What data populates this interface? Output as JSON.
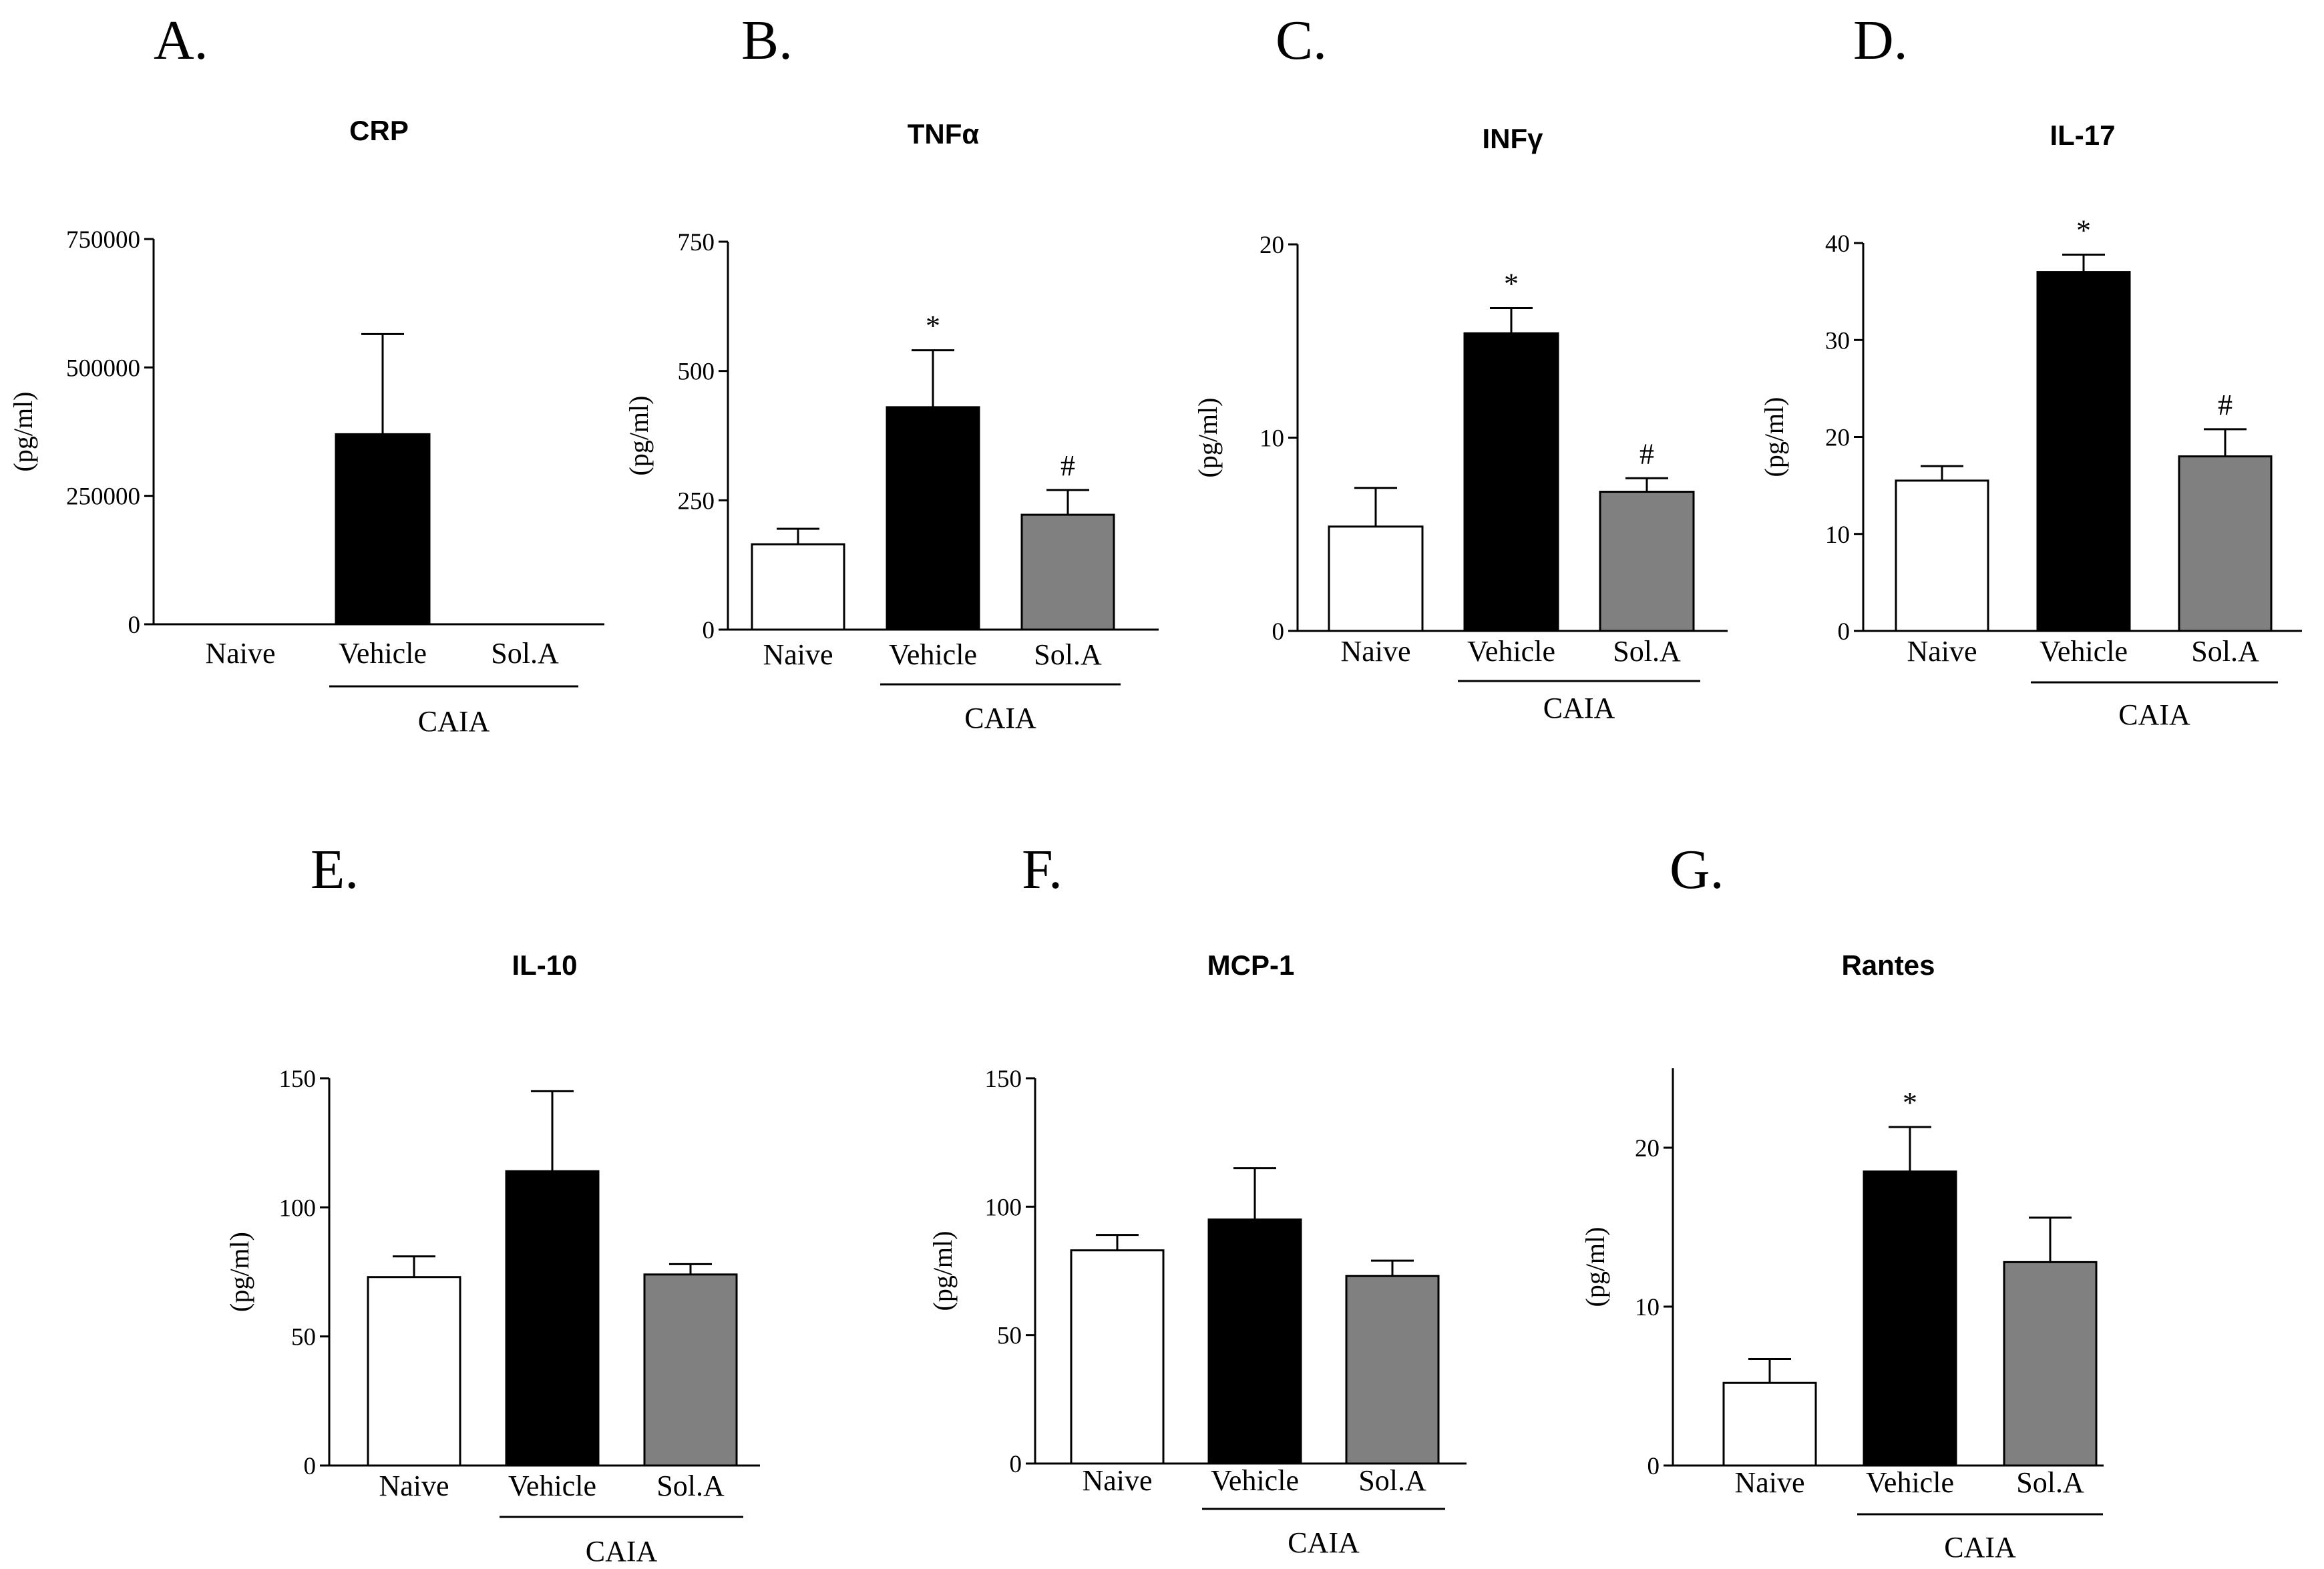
{
  "figure": {
    "colors": {
      "Naive": "#ffffff",
      "Vehicle": "#000000",
      "Sol.A": "#808080"
    }
  },
  "chart_data": [
    {
      "panel": "A.",
      "type": "bar",
      "title": "CRP",
      "ylabel": "(pg/ml)",
      "categories": [
        "Naive",
        "Vehicle",
        "Sol.A"
      ],
      "values": [
        0,
        370000,
        0
      ],
      "errors": [
        0,
        195000,
        0
      ],
      "annotations": [
        "",
        "",
        ""
      ],
      "ylim": [
        0,
        750000
      ],
      "yticks": [
        0,
        250000,
        500000,
        750000
      ],
      "ytick_labels": [
        "0",
        "250000",
        "500000",
        "750000"
      ],
      "group_label": "CAIA",
      "group_range": [
        1,
        2
      ]
    },
    {
      "panel": "B.",
      "type": "bar",
      "title": "TNFα",
      "ylabel": "(pg/ml)",
      "categories": [
        "Naive",
        "Vehicle",
        "Sol.A"
      ],
      "values": [
        165,
        430,
        222
      ],
      "errors": [
        30,
        110,
        48
      ],
      "annotations": [
        "",
        "*",
        "#"
      ],
      "ylim": [
        0,
        750
      ],
      "yticks": [
        0,
        250,
        500,
        750
      ],
      "ytick_labels": [
        "0",
        "250",
        "500",
        "750"
      ],
      "group_label": "CAIA",
      "group_range": [
        1,
        2
      ]
    },
    {
      "panel": "C.",
      "type": "bar",
      "title": "INFγ",
      "ylabel": "(pg/ml)",
      "categories": [
        "Naive",
        "Vehicle",
        "Sol.A"
      ],
      "values": [
        5.4,
        15.4,
        7.2
      ],
      "errors": [
        2.0,
        1.3,
        0.7
      ],
      "annotations": [
        "",
        "*",
        "#"
      ],
      "ylim": [
        0,
        20
      ],
      "yticks": [
        0,
        10,
        20
      ],
      "ytick_labels": [
        "0",
        "10",
        "20"
      ],
      "group_label": "CAIA",
      "group_range": [
        1,
        2
      ]
    },
    {
      "panel": "D.",
      "type": "bar",
      "title": "IL-17",
      "ylabel": "(pg/ml)",
      "categories": [
        "Naive",
        "Vehicle",
        "Sol.A"
      ],
      "values": [
        15.5,
        37,
        18
      ],
      "errors": [
        1.5,
        1.8,
        2.8
      ],
      "annotations": [
        "",
        "*",
        "#"
      ],
      "ylim": [
        0,
        40
      ],
      "yticks": [
        0,
        10,
        20,
        30,
        40
      ],
      "ytick_labels": [
        "0",
        "10",
        "20",
        "30",
        "40"
      ],
      "group_label": "CAIA",
      "group_range": [
        1,
        2
      ]
    },
    {
      "panel": "E.",
      "type": "bar",
      "title": "IL-10",
      "ylabel": "(pg/ml)",
      "categories": [
        "Naive",
        "Vehicle",
        "Sol.A"
      ],
      "values": [
        73,
        114,
        74
      ],
      "errors": [
        8,
        31,
        4
      ],
      "annotations": [
        "",
        "",
        ""
      ],
      "ylim": [
        0,
        150
      ],
      "yticks": [
        0,
        50,
        100,
        150
      ],
      "ytick_labels": [
        "0",
        "50",
        "100",
        "150"
      ],
      "group_label": "CAIA",
      "group_range": [
        1,
        2
      ]
    },
    {
      "panel": "F.",
      "type": "bar",
      "title": "MCP-1",
      "ylabel": "(pg/ml)",
      "categories": [
        "Naive",
        "Vehicle",
        "Sol.A"
      ],
      "values": [
        83,
        95,
        73
      ],
      "errors": [
        6,
        20,
        6
      ],
      "annotations": [
        "",
        "",
        ""
      ],
      "ylim": [
        0,
        150
      ],
      "yticks": [
        0,
        50,
        100,
        150
      ],
      "ytick_labels": [
        "0",
        "50",
        "100",
        "150"
      ],
      "group_label": "CAIA",
      "group_range": [
        1,
        2
      ]
    },
    {
      "panel": "G.",
      "type": "bar",
      "title": "Rantes",
      "ylabel": "(pg/ml)",
      "categories": [
        "Naive",
        "Vehicle",
        "Sol.A"
      ],
      "values": [
        5.2,
        18.5,
        12.8
      ],
      "errors": [
        1.5,
        2.8,
        2.8
      ],
      "annotations": [
        "",
        "*",
        ""
      ],
      "ylim": [
        0,
        25
      ],
      "yticks": [
        0,
        10,
        20
      ],
      "ytick_labels": [
        "0",
        "10",
        "20"
      ],
      "group_label": "CAIA",
      "group_range": [
        1,
        2
      ]
    }
  ]
}
